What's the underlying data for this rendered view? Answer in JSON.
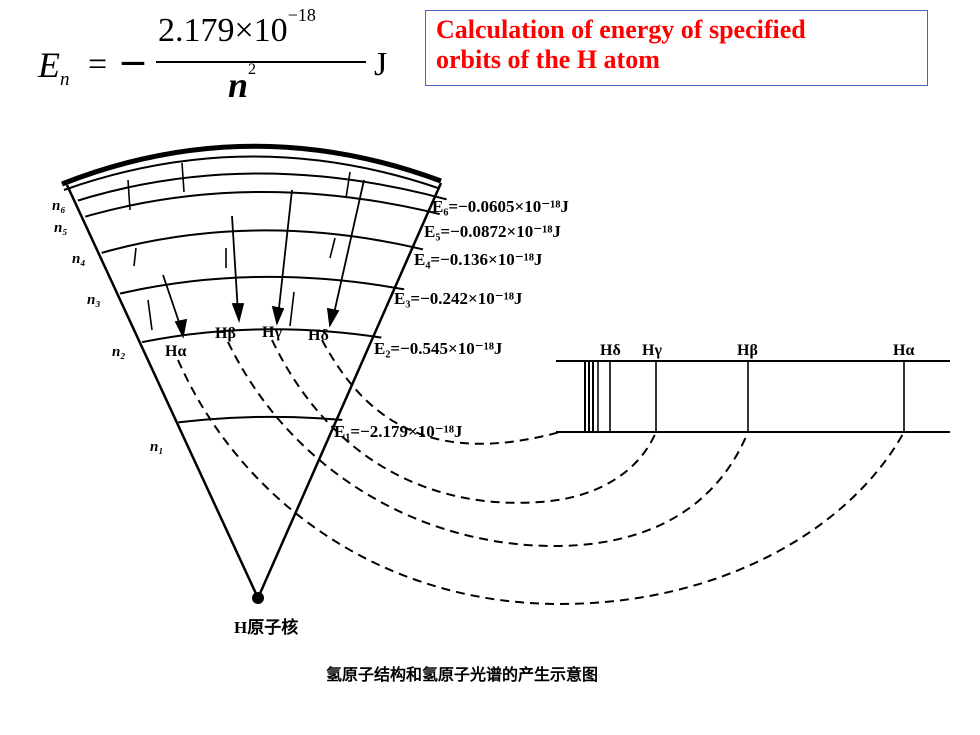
{
  "formula": {
    "lhs": "E",
    "lhs_sub": "n",
    "equals": "=",
    "minus": "–",
    "numerator": "2.179×10",
    "numerator_exp": "−18",
    "denominator": "n",
    "denominator_exp": "2",
    "unit": "J"
  },
  "title": {
    "line1": "Calculation of energy of specified",
    "line2": "orbits of the H atom"
  },
  "diagram": {
    "orbit_labels": [
      "n₆",
      "n₅",
      "n₄",
      "n₃",
      "n₂",
      "n₁"
    ],
    "energy_labels": {
      "e6": "E₆=−0.0605×10⁻¹⁸J",
      "e5": "E₅=−0.0872×10⁻¹⁸J",
      "e4": "E₄=−0.136×10⁻¹⁸J",
      "e3": "E₃=−0.242×10⁻¹⁸J",
      "e2": "E₂=−0.545×10⁻¹⁸J",
      "e1": "E₁=−2.179×10⁻¹⁸J"
    },
    "transition_labels": [
      "Hα",
      "Hβ",
      "Hγ",
      "Hδ"
    ],
    "spectrum_labels": [
      "Hδ",
      "Hγ",
      "Hβ",
      "Hα"
    ],
    "nucleus_label": "H原子核",
    "caption": "氢原子结构和氢原子光谱的产生示意图"
  }
}
